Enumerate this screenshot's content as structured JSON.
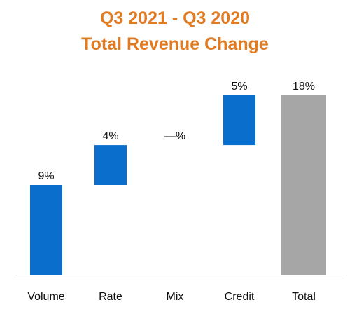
{
  "colors": {
    "title": "#E07B22",
    "bar": "#0A6FCC",
    "total_bar": "#A6A6A6",
    "axis": "#BFBFBF",
    "text": "#111111"
  },
  "chart_data": {
    "type": "bar",
    "subtype": "waterfall",
    "title": "Q3 2021 - Q3 2020",
    "subtitle": "Total Revenue Change",
    "categories": [
      "Volume",
      "Rate",
      "Mix",
      "Credit",
      "Total"
    ],
    "values": [
      9,
      4,
      0,
      5,
      18
    ],
    "value_labels": [
      "9%",
      "4%",
      "—%",
      "5%",
      "18%"
    ],
    "is_total": [
      false,
      false,
      false,
      false,
      true
    ],
    "ylim": [
      0,
      18
    ]
  }
}
